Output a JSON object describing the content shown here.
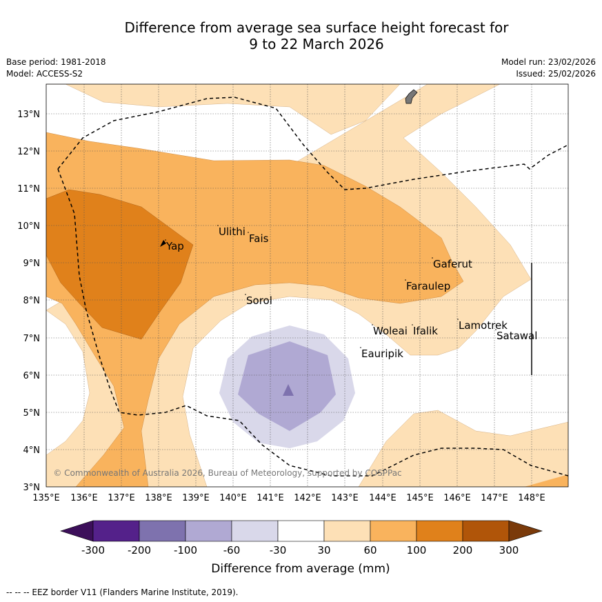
{
  "title_line1": "Difference from average sea surface height forecast for",
  "title_line2": "9 to 22 March 2026",
  "base_period": "Base period: 1981-2018",
  "model": "Model: ACCESS-S2",
  "model_run": "Model run: 23/02/2026",
  "issued": "Issued: 25/02/2026",
  "copyright": "© Commonwealth of Australia 2026, Bureau of Meteorology, supported by COSPPac",
  "legend_title": "Difference from average (mm)",
  "footer": "--  --  -- EEZ border V11 (Flanders Marine Institute, 2019).",
  "map": {
    "lon_ticks": [
      "135°E",
      "136°E",
      "137°E",
      "138°E",
      "139°E",
      "140°E",
      "141°E",
      "142°E",
      "143°E",
      "144°E",
      "145°E",
      "146°E",
      "147°E",
      "148°E"
    ],
    "lat_ticks": [
      "3°N",
      "4°N",
      "5°N",
      "6°N",
      "7°N",
      "8°N",
      "9°N",
      "10°N",
      "11°N",
      "12°N",
      "13°N"
    ],
    "places": [
      {
        "name": "Yap"
      },
      {
        "name": "Ulithi"
      },
      {
        "name": "Fais"
      },
      {
        "name": "Sorol"
      },
      {
        "name": "Gaferut"
      },
      {
        "name": "Faraulep"
      },
      {
        "name": "Woleai"
      },
      {
        "name": "Ifalik"
      },
      {
        "name": "Eauripik"
      },
      {
        "name": "Lamotrek"
      },
      {
        "name": "Satawal"
      }
    ]
  },
  "colorbar": {
    "labels": [
      "-300",
      "-200",
      "-100",
      "-60",
      "-30",
      "30",
      "60",
      "100",
      "200",
      "300"
    ],
    "colors": [
      "#3c0f5a",
      "#54218a",
      "#7e72ae",
      "#b0a9d3",
      "#d9d8ea",
      "#ffffff",
      "#fde0b6",
      "#f9b35d",
      "#e0811b",
      "#b05509",
      "#7a3a0a"
    ]
  },
  "colors": {
    "c30_60": "#fde0b6",
    "c60_100": "#f9b35d",
    "c100_200": "#e0811b",
    "cn30_60": "#d9d8ea",
    "cn60_100": "#b0a9d3",
    "cn100_200": "#7e72ae"
  }
}
